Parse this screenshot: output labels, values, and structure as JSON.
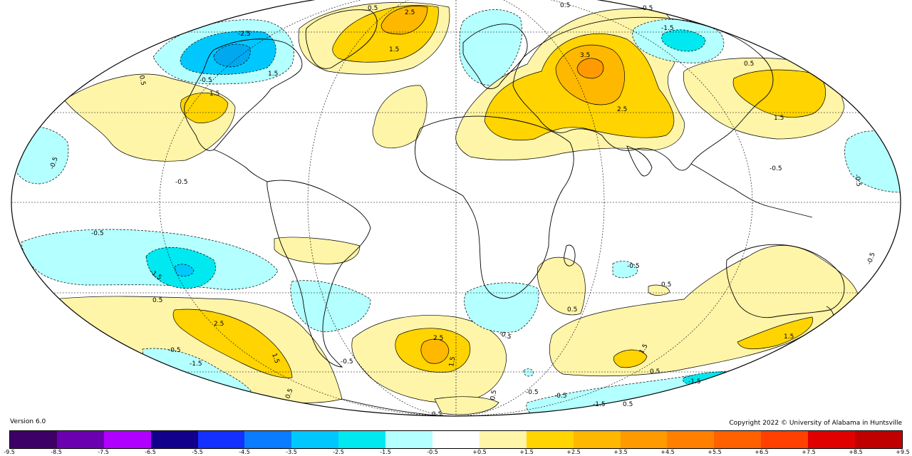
{
  "version_label": "Version 6.0",
  "copyright": "Copyright 2022 © University of Alabama in Huntsville",
  "contour_labels": [
    "0.5",
    "1.5",
    "2.5",
    "3.5",
    "-0.5",
    "-1.5",
    "-2.5"
  ],
  "legend": {
    "ticks": [
      "-9.5",
      "-8.5",
      "-7.5",
      "-6.5",
      "-5.5",
      "-4.5",
      "-3.5",
      "-2.5",
      "-1.5",
      "-0.5",
      "+0.5",
      "+1.5",
      "+2.5",
      "+3.5",
      "+4.5",
      "+5.5",
      "+6.5",
      "+7.5",
      "+8.5",
      "+9.5"
    ],
    "colors": [
      "#3d0066",
      "#6a00b0",
      "#b000ff",
      "#12008c",
      "#1430ff",
      "#0a7cff",
      "#00c8ff",
      "#00e8f0",
      "#b4ffff",
      "#ffffff",
      "#fff5a8",
      "#ffd400",
      "#ffb800",
      "#ff9a00",
      "#ff8000",
      "#ff6000",
      "#ff4000",
      "#e00000",
      "#c00000"
    ]
  },
  "colors": {
    "light_blue": "#b4ffff",
    "mid_blue": "#00e8f0",
    "blue": "#00c8ff",
    "light_yellow": "#fff5a8",
    "yellow": "#ffd400",
    "orange": "#ffb800",
    "dark_orange": "#ff9a00"
  }
}
